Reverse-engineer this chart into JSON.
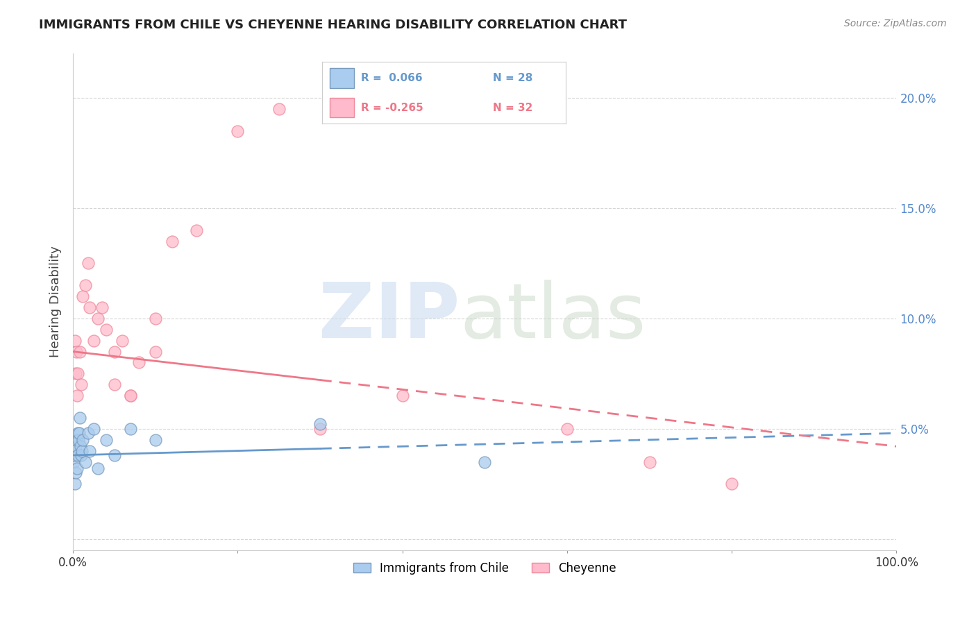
{
  "title": "IMMIGRANTS FROM CHILE VS CHEYENNE HEARING DISABILITY CORRELATION CHART",
  "source": "Source: ZipAtlas.com",
  "ylabel": "Hearing Disability",
  "xlim": [
    0,
    100
  ],
  "ylim": [
    -0.5,
    22
  ],
  "yticks": [
    0,
    5,
    10,
    15,
    20
  ],
  "ytick_labels": [
    "",
    "5.0%",
    "10.0%",
    "15.0%",
    "20.0%"
  ],
  "xticks": [
    0,
    20,
    40,
    60,
    80,
    100
  ],
  "xtick_labels": [
    "0.0%",
    "",
    "",
    "",
    "",
    "100.0%"
  ],
  "legend_r_blue": "R =  0.066",
  "legend_n_blue": "N = 28",
  "legend_r_pink": "R = -0.265",
  "legend_n_pink": "N = 32",
  "legend_label_blue": "Immigrants from Chile",
  "legend_label_pink": "Cheyenne",
  "blue_color": "#AACCEE",
  "pink_color": "#FFBBCC",
  "blue_dot_edge": "#7799BB",
  "pink_dot_edge": "#EE8899",
  "blue_line_color": "#6699CC",
  "pink_line_color": "#EE7788",
  "blue_scatter_x": [
    0.1,
    0.15,
    0.2,
    0.25,
    0.3,
    0.35,
    0.4,
    0.5,
    0.55,
    0.6,
    0.65,
    0.7,
    0.8,
    0.9,
    1.0,
    1.1,
    1.2,
    1.5,
    1.8,
    2.0,
    2.5,
    3.0,
    4.0,
    5.0,
    7.0,
    10.0,
    30.0,
    50.0
  ],
  "blue_scatter_y": [
    3.5,
    3.8,
    2.5,
    4.0,
    4.2,
    3.0,
    4.5,
    3.2,
    4.8,
    3.8,
    4.5,
    4.8,
    5.5,
    4.2,
    3.8,
    4.0,
    4.5,
    3.5,
    4.8,
    4.0,
    5.0,
    3.2,
    4.5,
    3.8,
    5.0,
    4.5,
    5.2,
    3.5
  ],
  "pink_scatter_x": [
    0.2,
    0.3,
    0.4,
    0.5,
    0.6,
    0.8,
    1.0,
    1.2,
    1.5,
    1.8,
    2.0,
    2.5,
    3.0,
    3.5,
    4.0,
    5.0,
    6.0,
    7.0,
    8.0,
    10.0,
    12.0,
    15.0,
    5.0,
    7.0,
    30.0,
    60.0,
    70.0,
    80.0,
    10.0,
    20.0,
    25.0,
    40.0
  ],
  "pink_scatter_y": [
    9.0,
    7.5,
    8.5,
    6.5,
    7.5,
    8.5,
    7.0,
    11.0,
    11.5,
    12.5,
    10.5,
    9.0,
    10.0,
    10.5,
    9.5,
    8.5,
    9.0,
    6.5,
    8.0,
    10.0,
    13.5,
    14.0,
    7.0,
    6.5,
    5.0,
    5.0,
    3.5,
    2.5,
    8.5,
    18.5,
    19.5,
    6.5
  ],
  "blue_line_y_start": 3.8,
  "blue_line_y_end": 4.8,
  "blue_solid_end_x": 30,
  "pink_line_y_start": 8.5,
  "pink_line_y_end": 4.2,
  "pink_solid_end_x": 30
}
